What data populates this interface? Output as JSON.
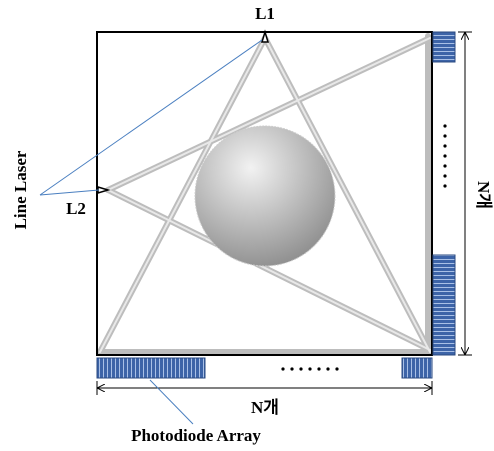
{
  "labels": {
    "l1": "L1",
    "l2": "L2",
    "line_laser": "Line Laser",
    "n_right": "N개",
    "n_bottom": "N개",
    "photodiode_array": "Photodiode Array"
  }
}
